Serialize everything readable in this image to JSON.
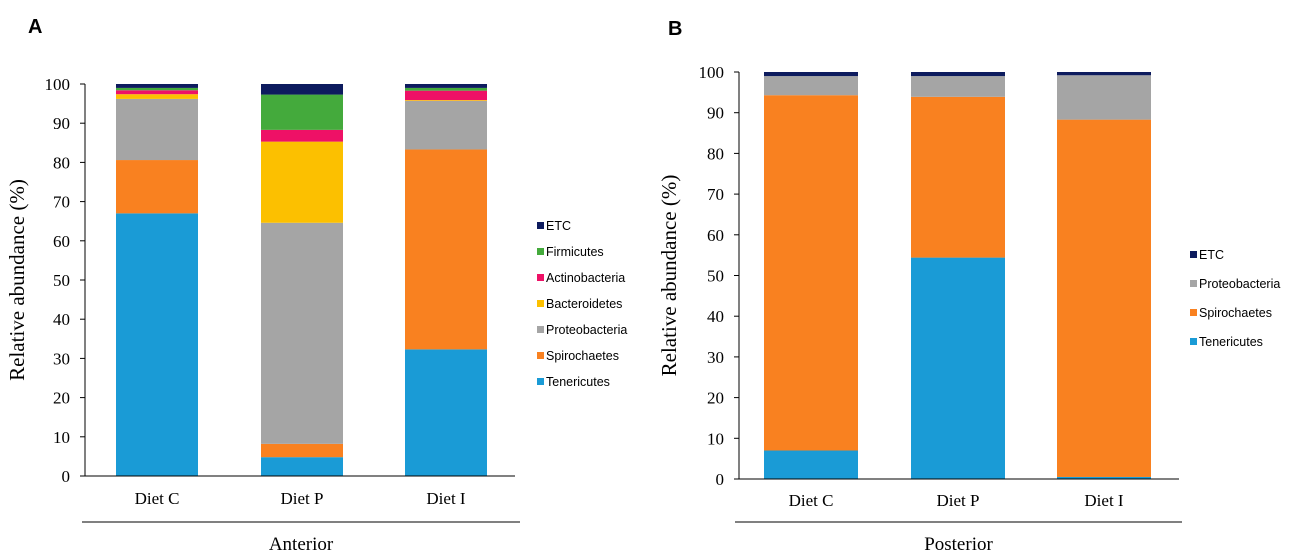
{
  "chart_data": [
    {
      "type": "bar",
      "stacked": true,
      "panel_label": "A",
      "group_label": "Anterior",
      "ylabel": "Relative abundance (%)",
      "ylim": [
        0,
        100
      ],
      "yticks": [
        0,
        10,
        20,
        30,
        40,
        50,
        60,
        70,
        80,
        90,
        100
      ],
      "categories": [
        "Diet C",
        "Diet P",
        "Diet I"
      ],
      "legend_position": "right",
      "series": [
        {
          "name": "Tenericutes",
          "color": "#1a9bd6",
          "values": [
            67.0,
            4.8,
            32.3
          ]
        },
        {
          "name": "Spirochaetes",
          "color": "#f98120",
          "values": [
            13.6,
            3.4,
            51.0
          ]
        },
        {
          "name": "Proteobacteria",
          "color": "#a5a5a5",
          "values": [
            15.6,
            56.4,
            12.4
          ]
        },
        {
          "name": "Bacteroidetes",
          "color": "#fcc000",
          "values": [
            1.2,
            20.7,
            0.2
          ]
        },
        {
          "name": "Actinobacteria",
          "color": "#ee1166",
          "values": [
            1.0,
            3.0,
            2.4
          ]
        },
        {
          "name": "Firmicutes",
          "color": "#44aa3c",
          "values": [
            0.6,
            9.0,
            0.7
          ]
        },
        {
          "name": "ETC",
          "color": "#0d1b5e",
          "values": [
            1.0,
            2.7,
            1.0
          ]
        }
      ]
    },
    {
      "type": "bar",
      "stacked": true,
      "panel_label": "B",
      "group_label": "Posterior",
      "ylabel": "Relative abundance (%)",
      "ylim": [
        0,
        100
      ],
      "yticks": [
        0,
        10,
        20,
        30,
        40,
        50,
        60,
        70,
        80,
        90,
        100
      ],
      "categories": [
        "Diet C",
        "Diet P",
        "Diet I"
      ],
      "legend_position": "right",
      "series": [
        {
          "name": "Tenericutes",
          "color": "#1a9bd6",
          "values": [
            7.0,
            54.4,
            0.5
          ]
        },
        {
          "name": "Spirochaetes",
          "color": "#f98120",
          "values": [
            87.3,
            39.5,
            87.8
          ]
        },
        {
          "name": "Proteobacteria",
          "color": "#a5a5a5",
          "values": [
            4.7,
            5.1,
            10.9
          ]
        },
        {
          "name": "ETC",
          "color": "#0d1b5e",
          "values": [
            1.0,
            1.0,
            0.8
          ]
        }
      ]
    }
  ]
}
